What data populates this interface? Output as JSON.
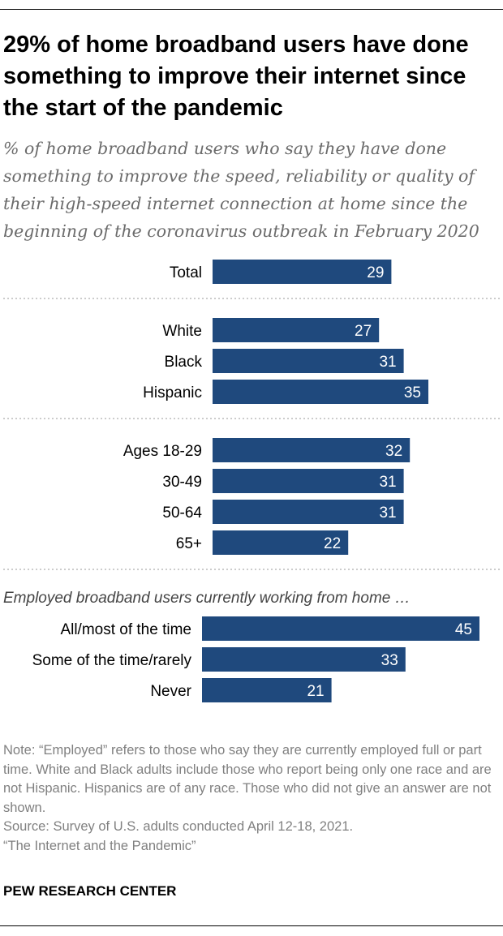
{
  "header": {
    "title": "29% of home broadband users have done something to improve their internet since the start of the pandemic",
    "subtitle": "% of home broadband users who say they have done something to improve the speed, reliability or quality of their high-speed internet connection at home since the beginning of the coronavirus outbreak in February 2020"
  },
  "chart_data": {
    "type": "bar",
    "orientation": "horizontal",
    "title": "29% of home broadband users have done something to improve their internet since the start of the pandemic",
    "xlim": [
      0,
      45
    ],
    "grid": false,
    "bar_color": "#1f497d",
    "groups": [
      {
        "label": "",
        "categories": [
          "Total"
        ],
        "values": [
          29
        ]
      },
      {
        "label": "",
        "categories": [
          "White",
          "Black",
          "Hispanic"
        ],
        "values": [
          27,
          31,
          35
        ]
      },
      {
        "label": "",
        "categories": [
          "Ages 18-29",
          "30-49",
          "50-64",
          "65+"
        ],
        "values": [
          32,
          31,
          31,
          22
        ]
      },
      {
        "label": "Employed broadband users currently working from home …",
        "categories": [
          "All/most of the time",
          "Some of the time/rarely",
          "Never"
        ],
        "values": [
          45,
          33,
          21
        ]
      }
    ]
  },
  "notes": [
    "Note: “Employed” refers to those who say they are currently employed full or part time. White and Black adults include those who report being only one race and are not Hispanic. Hispanics are of any race. Those who did not give an answer are not shown.",
    "Source: Survey of U.S. adults conducted April 12-18, 2021.",
    "“The Internet and the Pandemic”"
  ],
  "brand": "PEW RESEARCH CENTER"
}
